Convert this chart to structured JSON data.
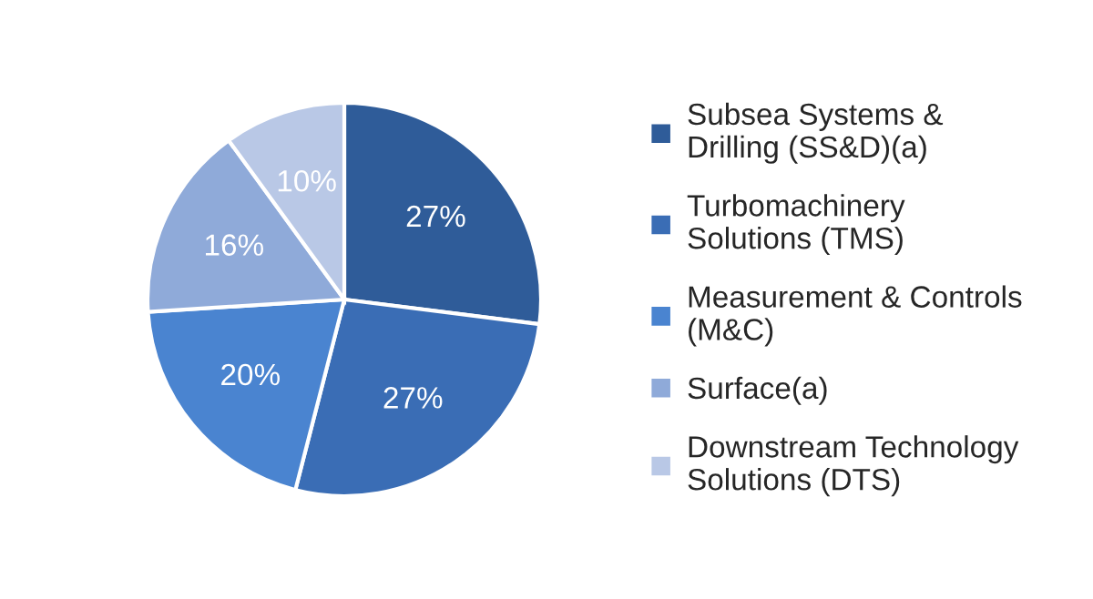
{
  "chart_data": {
    "type": "pie",
    "categories": [
      "Subsea Systems &\nDrilling (SS&D)(a)",
      "Turbomachinery\nSolutions (TMS)",
      "Measurement & Controls\n(M&C)",
      "Surface(a)",
      "Downstream Technology\nSolutions (DTS)"
    ],
    "values": [
      27,
      27,
      20,
      16,
      10
    ],
    "colors": [
      "#2f5c99",
      "#3a6db5",
      "#4a84d0",
      "#8faad9",
      "#b9c8e6"
    ],
    "value_labels": [
      "27%",
      "27%",
      "20%",
      "16%",
      "10%"
    ],
    "legend": "right"
  }
}
